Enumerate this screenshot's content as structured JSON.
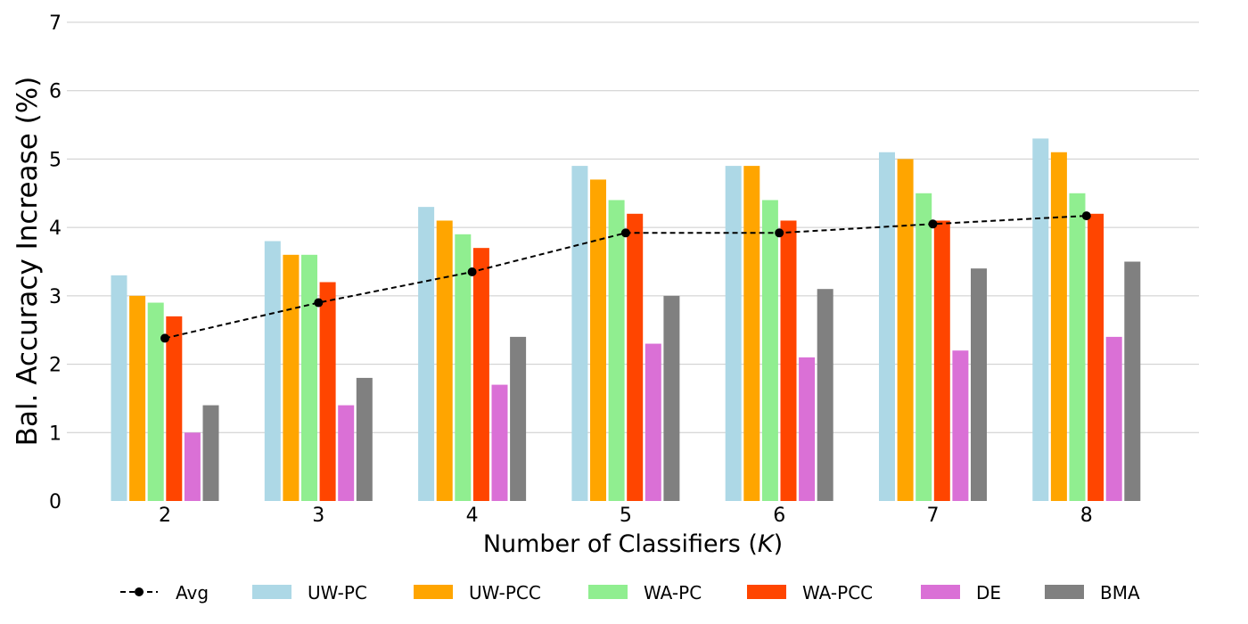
{
  "chart_data": {
    "type": "bar",
    "xlabel_prefix": "Number of Classifiers (",
    "xlabel_var": "K",
    "xlabel_suffix": ")",
    "ylabel": "Bal. Accuracy Increase (%)",
    "categories": [
      "2",
      "3",
      "4",
      "5",
      "6",
      "7",
      "8"
    ],
    "ylim": [
      0,
      7
    ],
    "yticks": [
      0,
      1,
      2,
      3,
      4,
      5,
      6,
      7
    ],
    "grid": "horizontal",
    "legend_position": "bottom",
    "series": [
      {
        "name": "UW-PC",
        "color": "#add8e6",
        "values": [
          3.3,
          3.8,
          4.3,
          4.9,
          4.9,
          5.1,
          5.3
        ]
      },
      {
        "name": "UW-PCC",
        "color": "#ffa500",
        "values": [
          3.0,
          3.6,
          4.1,
          4.7,
          4.9,
          5.0,
          5.1
        ]
      },
      {
        "name": "WA-PC",
        "color": "#90ee90",
        "values": [
          2.9,
          3.6,
          3.9,
          4.4,
          4.4,
          4.5,
          4.5
        ]
      },
      {
        "name": "WA-PCC",
        "color": "#ff4500",
        "values": [
          2.7,
          3.2,
          3.7,
          4.2,
          4.1,
          4.1,
          4.2
        ]
      },
      {
        "name": "DE",
        "color": "#da70d6",
        "values": [
          1.0,
          1.4,
          1.7,
          2.3,
          2.1,
          2.2,
          2.4
        ]
      },
      {
        "name": "BMA",
        "color": "#808080",
        "values": [
          1.4,
          1.8,
          2.4,
          3.0,
          3.1,
          3.4,
          3.5
        ]
      }
    ],
    "line": {
      "name": "Avg",
      "color": "#000000",
      "style": "dashed",
      "marker": "circle",
      "values": [
        2.38,
        2.9,
        3.35,
        3.92,
        3.92,
        4.05,
        4.17
      ]
    }
  }
}
